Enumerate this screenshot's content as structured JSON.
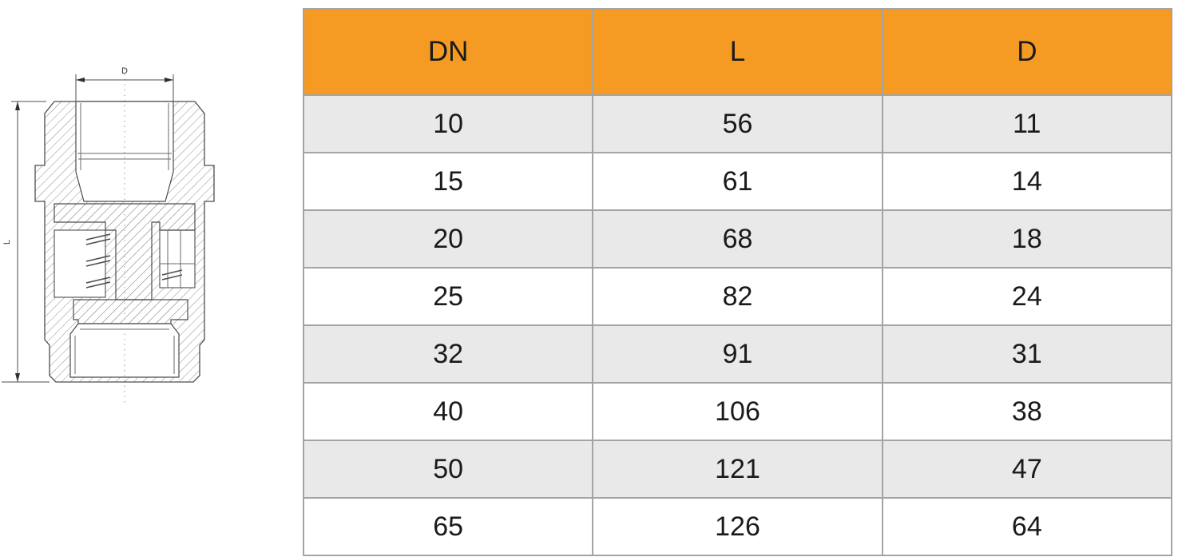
{
  "drawing": {
    "name": "check-valve-cross-section",
    "top_dim_label": "D",
    "left_dim_label": "L"
  },
  "table": {
    "headers": [
      "DN",
      "L",
      "D"
    ],
    "rows": [
      [
        "10",
        "56",
        "11"
      ],
      [
        "15",
        "61",
        "14"
      ],
      [
        "20",
        "68",
        "18"
      ],
      [
        "25",
        "82",
        "24"
      ],
      [
        "32",
        "91",
        "31"
      ],
      [
        "40",
        "106",
        "38"
      ],
      [
        "50",
        "121",
        "47"
      ],
      [
        "65",
        "126",
        "64"
      ]
    ],
    "colors": {
      "header_bg": "#F59A23",
      "alt_row_bg": "#E9E9EA",
      "row_bg": "#FFFFFF",
      "border": "#A4A4A4",
      "text": "#1A1A1A"
    }
  }
}
